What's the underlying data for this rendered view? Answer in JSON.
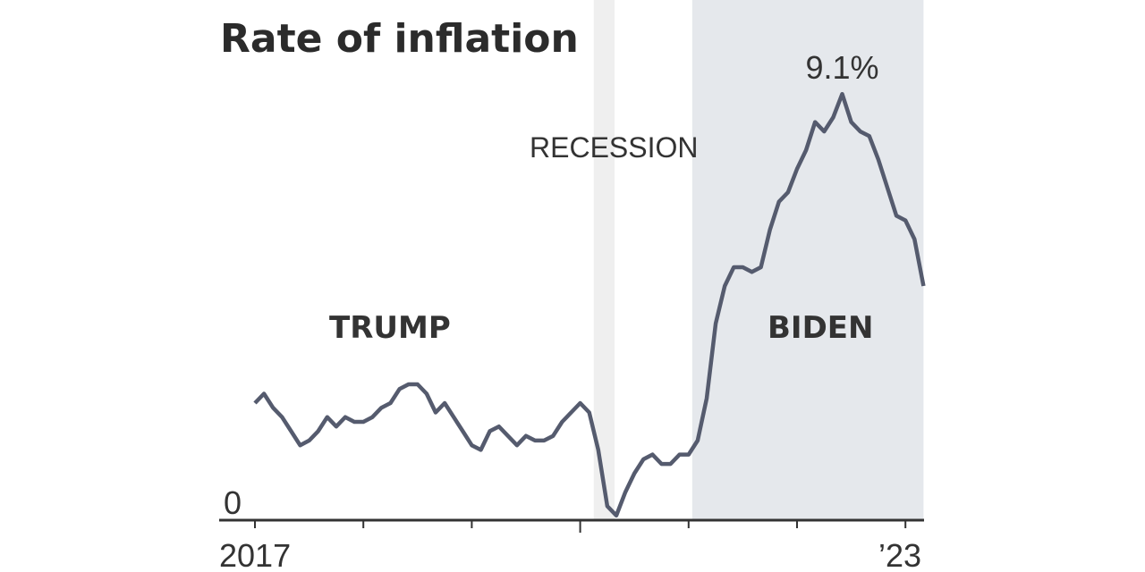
{
  "chart_data": {
    "type": "line",
    "title": "Rate of inflation",
    "xlabel": "",
    "ylabel": "",
    "ylim": [
      0,
      9.1
    ],
    "y_tick_labels": [
      "0"
    ],
    "x_tick_labels": [
      "2017",
      "’23"
    ],
    "x_start": "2017-01",
    "x_frequency": "monthly",
    "series": [
      {
        "name": "Inflation rate (%)",
        "color": "#555b6e",
        "values": [
          2.5,
          2.7,
          2.4,
          2.2,
          1.9,
          1.6,
          1.7,
          1.9,
          2.2,
          2.0,
          2.2,
          2.1,
          2.1,
          2.2,
          2.4,
          2.5,
          2.8,
          2.9,
          2.9,
          2.7,
          2.3,
          2.5,
          2.2,
          1.9,
          1.6,
          1.5,
          1.9,
          2.0,
          1.8,
          1.6,
          1.8,
          1.7,
          1.7,
          1.8,
          2.1,
          2.3,
          2.5,
          2.3,
          1.5,
          0.3,
          0.1,
          0.6,
          1.0,
          1.3,
          1.4,
          1.2,
          1.2,
          1.4,
          1.4,
          1.7,
          2.6,
          4.2,
          5.0,
          5.4,
          5.4,
          5.3,
          5.4,
          6.2,
          6.8,
          7.0,
          7.5,
          7.9,
          8.5,
          8.3,
          8.6,
          9.1,
          8.5,
          8.3,
          8.2,
          7.7,
          7.1,
          6.5,
          6.4,
          6.0,
          5.0
        ]
      }
    ],
    "shaded_periods": [
      {
        "label": "RECESSION",
        "start_month_index": 37.5,
        "end_month_index": 39.8,
        "color": "#efefef"
      },
      {
        "label": "BIDEN",
        "start_month_index": 48.4,
        "end_month_index": 74,
        "color": "#e5e8ec"
      }
    ],
    "period_labels": {
      "trump": "TRUMP",
      "biden": "BIDEN"
    },
    "peak_label": "9.1%",
    "grid": false
  }
}
